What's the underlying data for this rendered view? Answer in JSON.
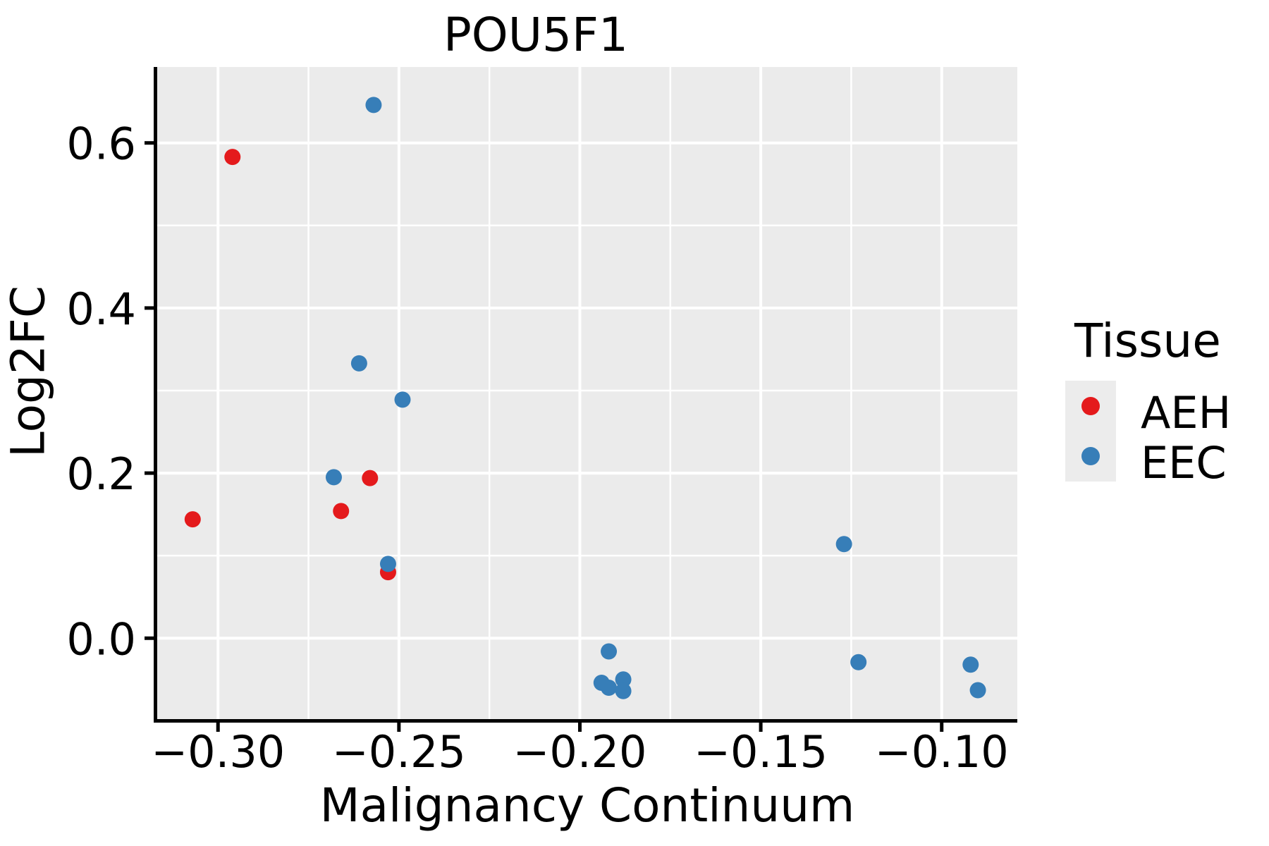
{
  "chart_data": {
    "type": "scatter",
    "title": "POU5F1",
    "xlabel": "Malignancy Continuum",
    "ylabel": "Log2FC",
    "xlim": [
      -0.3168,
      -0.0791
    ],
    "ylim": [
      -0.098,
      0.692
    ],
    "x_major_ticks": [
      -0.3,
      -0.25,
      -0.2,
      -0.15,
      -0.1
    ],
    "x_tick_labels": [
      "−0.30",
      "−0.25",
      "−0.20",
      "−0.15",
      "−0.10"
    ],
    "x_minor_ticks": [
      -0.275,
      -0.225,
      -0.175,
      -0.125
    ],
    "y_major_ticks": [
      0.0,
      0.2,
      0.4,
      0.6
    ],
    "y_tick_labels": [
      "0.0",
      "0.2",
      "0.4",
      "0.6"
    ],
    "y_minor_ticks": [
      0.1,
      0.3,
      0.5
    ],
    "grid": true,
    "panel_background": "#ebebeb",
    "gridline_color": "#ffffff",
    "axis_color": "#000000",
    "legend": {
      "title": "Tissue",
      "position": "right",
      "entries": [
        {
          "label": "AEH",
          "color": "#e41a1c"
        },
        {
          "label": "EEC",
          "color": "#377eb8"
        }
      ]
    },
    "series": [
      {
        "name": "AEH",
        "color": "#e41a1c",
        "points": [
          [
            -0.296,
            0.583
          ],
          [
            -0.307,
            0.144
          ],
          [
            -0.266,
            0.154
          ],
          [
            -0.258,
            0.194
          ],
          [
            -0.253,
            0.08
          ]
        ]
      },
      {
        "name": "EEC",
        "color": "#377eb8",
        "points": [
          [
            -0.257,
            0.646
          ],
          [
            -0.261,
            0.333
          ],
          [
            -0.249,
            0.289
          ],
          [
            -0.268,
            0.195
          ],
          [
            -0.253,
            0.09
          ],
          [
            -0.127,
            0.114
          ],
          [
            -0.192,
            -0.016
          ],
          [
            -0.194,
            -0.054
          ],
          [
            -0.192,
            -0.06
          ],
          [
            -0.188,
            -0.05
          ],
          [
            -0.188,
            -0.064
          ],
          [
            -0.123,
            -0.029
          ],
          [
            -0.092,
            -0.032
          ],
          [
            -0.09,
            -0.063
          ]
        ]
      }
    ]
  }
}
